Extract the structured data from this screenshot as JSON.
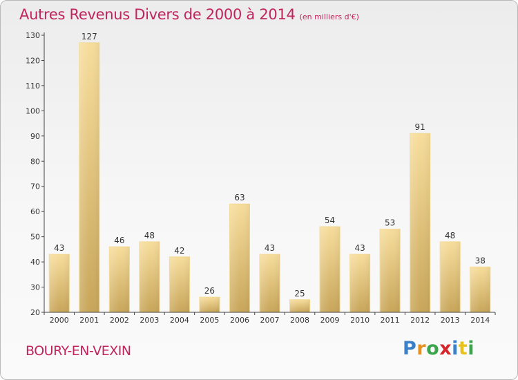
{
  "header": {
    "title": "Autres Revenus Divers de 2000 à 2014",
    "subtitle": "(en milliers d'€)"
  },
  "footer": {
    "town": "BOURY-EN-VEXIN",
    "logo_text": "Proxiti"
  },
  "colors": {
    "title": "#c0245c",
    "bar_light": "#f6dc9a",
    "bar_dark": "#c9a85c",
    "axis": "#333333"
  },
  "chart_data": {
    "type": "bar",
    "title": "Autres Revenus Divers de 2000 à 2014",
    "xlabel": "",
    "ylabel": "",
    "ylim": [
      20,
      130
    ],
    "yticks": [
      20,
      30,
      40,
      50,
      60,
      70,
      80,
      90,
      100,
      110,
      120,
      130
    ],
    "grid": false,
    "categories": [
      "2000",
      "2001",
      "2002",
      "2003",
      "2004",
      "2005",
      "2006",
      "2007",
      "2008",
      "2009",
      "2010",
      "2011",
      "2012",
      "2013",
      "2014"
    ],
    "values": [
      43,
      127,
      46,
      48,
      42,
      26,
      63,
      43,
      25,
      54,
      43,
      53,
      91,
      48,
      38
    ],
    "data_labels": [
      "43",
      "127",
      "46",
      "48",
      "42",
      "26",
      "63",
      "43",
      "25",
      "54",
      "43",
      "53",
      "91",
      "48",
      "38"
    ]
  }
}
